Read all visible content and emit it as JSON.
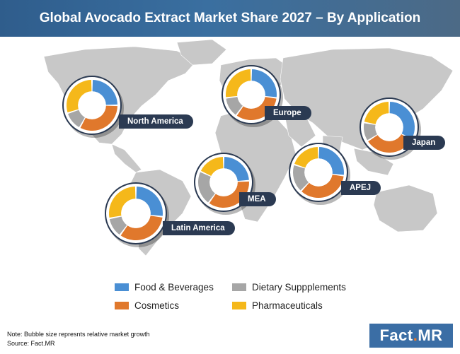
{
  "title": "Global Avocado Extract Market Share 2027 – By Application",
  "legend": [
    {
      "label": "Food & Beverages",
      "color": "#4a8fd4"
    },
    {
      "label": "Dietary Suppplements",
      "color": "#a6a6a6"
    },
    {
      "label": "Cosmetics",
      "color": "#e0782c"
    },
    {
      "label": "Pharmaceuticals",
      "color": "#f5b81a"
    }
  ],
  "note": "Note: Bubble size represnts relative market growth",
  "source": "Source: Fact.MR",
  "brand": {
    "part1": "Fact",
    "dot": ".",
    "part2": "MR"
  },
  "chart_data": {
    "type": "pie",
    "title": "Global Avocado Extract Market Share 2027 – By Application",
    "series_names": [
      "Food & Beverages",
      "Cosmetics",
      "Dietary Suppplements",
      "Pharmaceuticals"
    ],
    "colors": [
      "#4a8fd4",
      "#e0782c",
      "#a6a6a6",
      "#f5b81a"
    ],
    "regions": [
      {
        "name": "North America",
        "values": [
          25,
          33,
          12,
          30
        ]
      },
      {
        "name": "Europe",
        "values": [
          27,
          33,
          13,
          27
        ]
      },
      {
        "name": "Japan",
        "values": [
          33,
          33,
          12,
          22
        ]
      },
      {
        "name": "APEJ",
        "values": [
          27,
          35,
          18,
          20
        ]
      },
      {
        "name": "MEA",
        "values": [
          24,
          36,
          22,
          18
        ]
      },
      {
        "name": "Latin America",
        "values": [
          27,
          33,
          12,
          28
        ]
      }
    ]
  }
}
